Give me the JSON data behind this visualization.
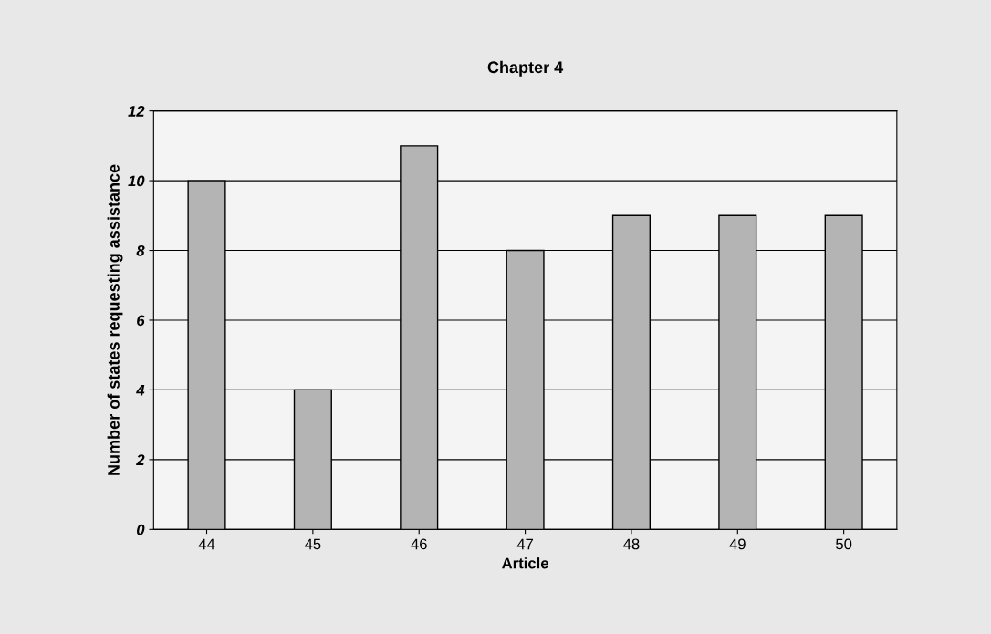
{
  "chart_data": {
    "type": "bar",
    "title": "Chapter 4",
    "xlabel": "Article",
    "ylabel": "Number of states requesting assistance",
    "categories": [
      "44",
      "45",
      "46",
      "47",
      "48",
      "49",
      "50"
    ],
    "values": [
      10,
      4,
      11,
      8,
      9,
      9,
      9
    ],
    "color": "#b4b4b4",
    "ylim": [
      0,
      12
    ],
    "yticks": [
      0,
      2,
      4,
      6,
      8,
      10,
      12
    ],
    "grid": "y"
  }
}
